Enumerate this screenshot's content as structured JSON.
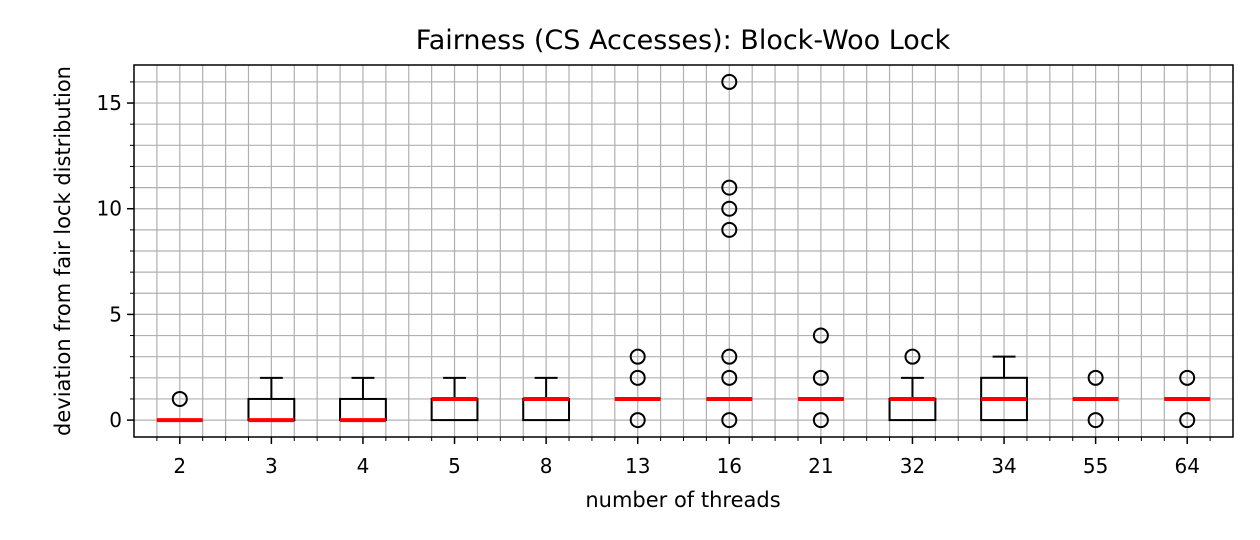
{
  "chart_data": {
    "type": "box",
    "title": "Fairness (CS Accesses): Block-Woo Lock",
    "xlabel": "number of threads",
    "ylabel": "deviation from fair lock distribution",
    "ylim": [
      -0.8,
      16.8
    ],
    "yticks": [
      0,
      5,
      10,
      15
    ],
    "grid": true,
    "median_color": "#ff0000",
    "box_color": "#000000",
    "categories": [
      "2",
      "3",
      "4",
      "5",
      "8",
      "13",
      "16",
      "21",
      "32",
      "34",
      "55",
      "64"
    ],
    "boxes": [
      {
        "whisker_low": 0,
        "q1": 0,
        "median": 0,
        "q3": 0,
        "whisker_high": 0,
        "outliers": [
          1
        ]
      },
      {
        "whisker_low": 0,
        "q1": 0,
        "median": 0,
        "q3": 1,
        "whisker_high": 2,
        "outliers": []
      },
      {
        "whisker_low": 0,
        "q1": 0,
        "median": 0,
        "q3": 1,
        "whisker_high": 2,
        "outliers": []
      },
      {
        "whisker_low": 0,
        "q1": 0,
        "median": 1,
        "q3": 1,
        "whisker_high": 2,
        "outliers": []
      },
      {
        "whisker_low": 0,
        "q1": 0,
        "median": 1,
        "q3": 1,
        "whisker_high": 2,
        "outliers": []
      },
      {
        "whisker_low": 1,
        "q1": 1,
        "median": 1,
        "q3": 1,
        "whisker_high": 1,
        "outliers": [
          0,
          2,
          3
        ]
      },
      {
        "whisker_low": 1,
        "q1": 1,
        "median": 1,
        "q3": 1,
        "whisker_high": 1,
        "outliers": [
          0,
          2,
          3,
          9,
          10,
          11,
          16
        ]
      },
      {
        "whisker_low": 1,
        "q1": 1,
        "median": 1,
        "q3": 1,
        "whisker_high": 1,
        "outliers": [
          0,
          2,
          4
        ]
      },
      {
        "whisker_low": 0,
        "q1": 0,
        "median": 1,
        "q3": 1,
        "whisker_high": 2,
        "outliers": [
          3
        ]
      },
      {
        "whisker_low": 0,
        "q1": 0,
        "median": 1,
        "q3": 2,
        "whisker_high": 3,
        "outliers": []
      },
      {
        "whisker_low": 1,
        "q1": 1,
        "median": 1,
        "q3": 1,
        "whisker_high": 1,
        "outliers": [
          0,
          2
        ]
      },
      {
        "whisker_low": 1,
        "q1": 1,
        "median": 1,
        "q3": 1,
        "whisker_high": 1,
        "outliers": [
          0,
          2
        ]
      }
    ]
  }
}
